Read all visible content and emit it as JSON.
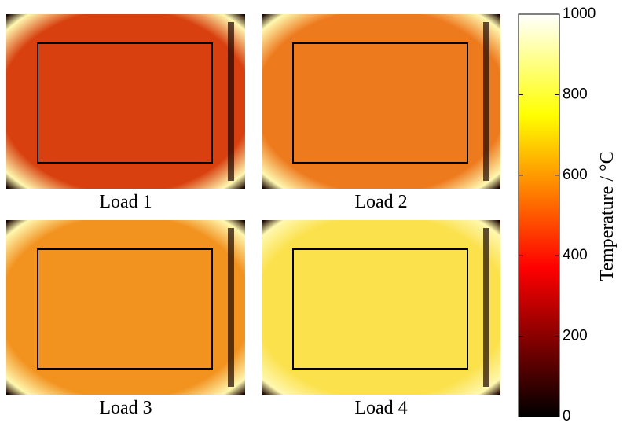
{
  "chart_data": {
    "type": "heatmap",
    "panels": [
      {
        "label": "Load 1",
        "color": "#d8400f"
      },
      {
        "label": "Load 2",
        "color": "#ee7a1e"
      },
      {
        "label": "Load 3",
        "color": "#f2921f"
      },
      {
        "label": "Load 4",
        "color": "#fbe14c"
      }
    ],
    "colorbar_label": "Temperature / °C",
    "cmap": [
      "#000000",
      "#ff0000",
      "#ffff00",
      "#ffffff"
    ],
    "ylim": [
      0,
      1000
    ],
    "yticks": [
      0,
      200,
      400,
      600,
      800,
      1000
    ]
  }
}
